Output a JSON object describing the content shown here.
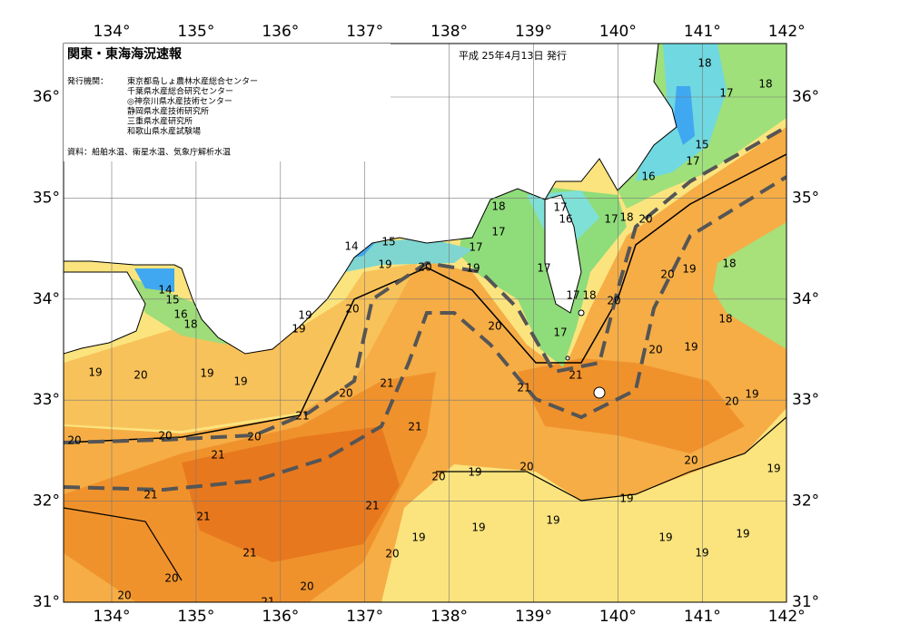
{
  "header": {
    "title": "関東・東海海況速報",
    "date": "平成 25年4月13日 発行",
    "issuer_label": "発行機関：",
    "issuers": [
      "東京都島しょ農林水産総合センター",
      "千葉県水産総合研究センター",
      "◎神奈川県水産技術センター",
      "静岡県水産技術研究所",
      "三重県水産研究所",
      "和歌山県水産試験場"
    ],
    "source": "資料：船舶水温、衛星水温、気象庁解析水温"
  },
  "map": {
    "longitudes": [
      {
        "value": 134,
        "label": "134°"
      },
      {
        "value": 135,
        "label": "135°"
      },
      {
        "value": 136,
        "label": "136°"
      },
      {
        "value": 137,
        "label": "137°"
      },
      {
        "value": 138,
        "label": "138°"
      },
      {
        "value": 139,
        "label": "139°"
      },
      {
        "value": 140,
        "label": "140°"
      },
      {
        "value": 141,
        "label": "141°"
      },
      {
        "value": 142,
        "label": "142°"
      }
    ],
    "latitudes": [
      {
        "value": 31,
        "label": "31°"
      },
      {
        "value": 32,
        "label": "32°"
      },
      {
        "value": 33,
        "label": "33°"
      },
      {
        "value": 34,
        "label": "34°"
      },
      {
        "value": 35,
        "label": "35°"
      },
      {
        "value": 36,
        "label": "36°"
      }
    ],
    "contour_labels": [
      18,
      18,
      17,
      15,
      17,
      16,
      20,
      18,
      17,
      18,
      17,
      17,
      16,
      17,
      19,
      20,
      15,
      14,
      19,
      17,
      17,
      18,
      20,
      17,
      20,
      21,
      21,
      20,
      19,
      18,
      18,
      20,
      19,
      20,
      19,
      20,
      19,
      19,
      19,
      19,
      19,
      20,
      19,
      20,
      19,
      19,
      19,
      21,
      21,
      20,
      20,
      19,
      19,
      21,
      20,
      21,
      20,
      20,
      19,
      20,
      19,
      19,
      14,
      15,
      16,
      18,
      21,
      21,
      21,
      20,
      20,
      20,
      21,
      21,
      20
    ]
  }
}
